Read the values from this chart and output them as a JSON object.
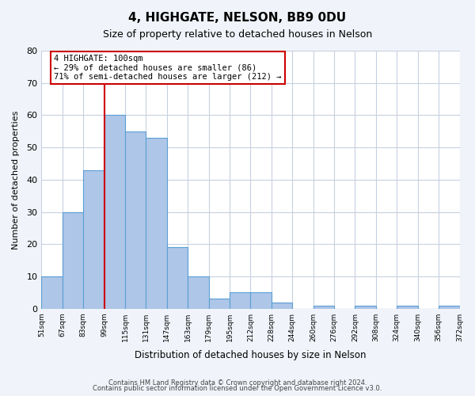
{
  "title": "4, HIGHGATE, NELSON, BB9 0DU",
  "subtitle": "Size of property relative to detached houses in Nelson",
  "xlabel": "Distribution of detached houses by size in Nelson",
  "ylabel": "Number of detached properties",
  "bar_values": [
    10,
    30,
    43,
    60,
    55,
    53,
    19,
    10,
    3,
    5,
    5,
    2,
    0,
    1,
    0,
    1,
    0,
    1,
    0,
    1
  ],
  "bin_labels": [
    "51sqm",
    "67sqm",
    "83sqm",
    "99sqm",
    "115sqm",
    "131sqm",
    "147sqm",
    "163sqm",
    "179sqm",
    "195sqm",
    "212sqm",
    "228sqm",
    "244sqm",
    "260sqm",
    "276sqm",
    "292sqm",
    "308sqm",
    "324sqm",
    "340sqm",
    "356sqm",
    "372sqm"
  ],
  "bar_color": "#aec6e8",
  "bar_edge_color": "#5a9fd4",
  "ylim": [
    0,
    80
  ],
  "yticks": [
    0,
    10,
    20,
    30,
    40,
    50,
    60,
    70,
    80
  ],
  "property_line_x": 3,
  "property_line_color": "#cc0000",
  "annotation_title": "4 HIGHGATE: 100sqm",
  "annotation_line1": "← 29% of detached houses are smaller (86)",
  "annotation_line2": "71% of semi-detached houses are larger (212) →",
  "annotation_box_color": "#cc0000",
  "footer1": "Contains HM Land Registry data © Crown copyright and database right 2024.",
  "footer2": "Contains public sector information licensed under the Open Government Licence v3.0.",
  "bg_color": "#f0f4fa",
  "plot_bg_color": "#ffffff",
  "grid_color": "#c8d0e0"
}
